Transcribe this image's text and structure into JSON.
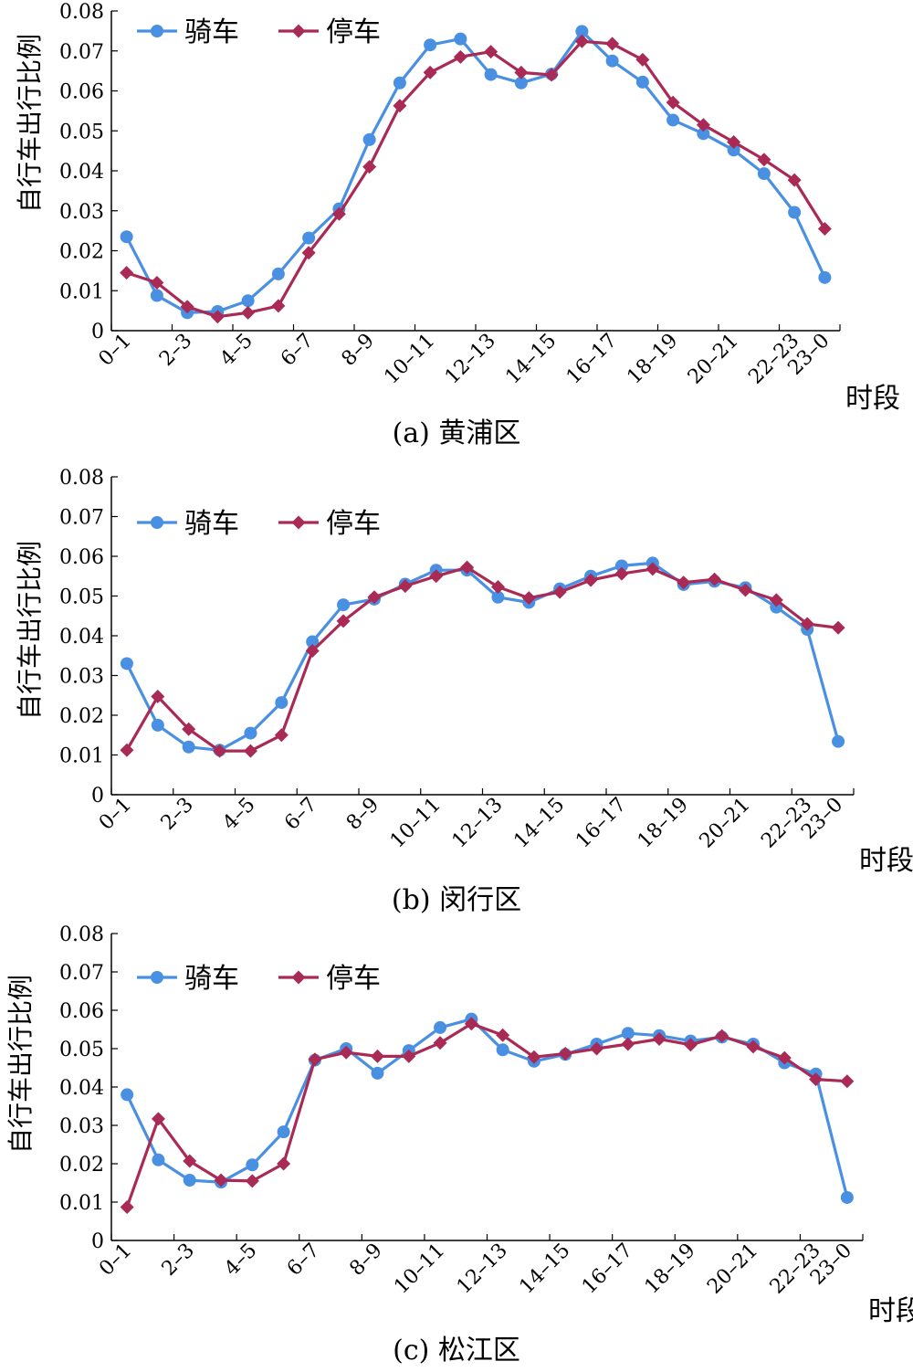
{
  "colors": {
    "riding": "#4a90e2",
    "parking": "#a82a55",
    "axis": "#000000"
  },
  "chart_data": [
    {
      "type": "line",
      "caption": "(a) 黄浦区",
      "ylabel": "自行车出行比例",
      "xlabel": "时段",
      "ylim": [
        0,
        0.08
      ],
      "yticks": [
        "0",
        "0.01",
        "0.02",
        "0.03",
        "0.04",
        "0.05",
        "0.06",
        "0.07",
        "0.08"
      ],
      "x_categories": [
        "0–1",
        "1–2",
        "2–3",
        "3–4",
        "4–5",
        "5–6",
        "6–7",
        "7–8",
        "8–9",
        "9–10",
        "10–11",
        "11–12",
        "12–13",
        "13–14",
        "14–15",
        "15–16",
        "16–17",
        "17–18",
        "18–19",
        "19–20",
        "20–21",
        "21–22",
        "22–23",
        "23–0"
      ],
      "x_tick_labels": [
        "0–1",
        "2–3",
        "4–5",
        "6–7",
        "8–9",
        "10–11",
        "12–13",
        "14–15",
        "16–17",
        "18–19",
        "20–21",
        "22–23",
        "23–0"
      ],
      "legend_position": "top-left",
      "series": [
        {
          "name": "骑车",
          "marker": "circle",
          "values": [
            0.0235,
            0.0088,
            0.0045,
            0.0048,
            0.0075,
            0.0142,
            0.0232,
            0.0305,
            0.0478,
            0.062,
            0.0715,
            0.073,
            0.0641,
            0.062,
            0.0642,
            0.0749,
            0.0675,
            0.0622,
            0.0527,
            0.0493,
            0.0452,
            0.0393,
            0.0296,
            0.0133
          ]
        },
        {
          "name": "停车",
          "marker": "diamond",
          "values": [
            0.0145,
            0.012,
            0.006,
            0.0035,
            0.0045,
            0.0062,
            0.0195,
            0.0292,
            0.041,
            0.0563,
            0.0646,
            0.0685,
            0.0698,
            0.0646,
            0.064,
            0.0724,
            0.0718,
            0.0678,
            0.0571,
            0.0515,
            0.0472,
            0.0428,
            0.0377,
            0.0255
          ]
        }
      ]
    },
    {
      "type": "line",
      "caption": "(b) 闵行区",
      "ylabel": "自行车出行比例",
      "xlabel": "时段",
      "ylim": [
        0,
        0.08
      ],
      "yticks": [
        "0",
        "0.01",
        "0.02",
        "0.03",
        "0.04",
        "0.05",
        "0.06",
        "0.07",
        "0.08"
      ],
      "x_categories": [
        "0–1",
        "1–2",
        "2–3",
        "3–4",
        "4–5",
        "5–6",
        "6–7",
        "7–8",
        "8–9",
        "9–10",
        "10–11",
        "11–12",
        "12–13",
        "13–14",
        "14–15",
        "15–16",
        "16–17",
        "17–18",
        "18–19",
        "19–20",
        "20–21",
        "21–22",
        "22–23",
        "23–0"
      ],
      "x_tick_labels": [
        "0–1",
        "2–3",
        "4–5",
        "6–7",
        "8–9",
        "10–11",
        "12–13",
        "14–15",
        "16–17",
        "18–19",
        "20–21",
        "22–23",
        "23–0"
      ],
      "legend_position": "top-left",
      "series": [
        {
          "name": "骑车",
          "marker": "circle",
          "values": [
            0.033,
            0.0175,
            0.012,
            0.0112,
            0.0155,
            0.0232,
            0.0385,
            0.0478,
            0.0492,
            0.053,
            0.0565,
            0.0565,
            0.0497,
            0.0484,
            0.0518,
            0.055,
            0.0576,
            0.0583,
            0.0529,
            0.0537,
            0.0521,
            0.0472,
            0.0416,
            0.0134
          ]
        },
        {
          "name": "停车",
          "marker": "diamond",
          "values": [
            0.0112,
            0.0247,
            0.0165,
            0.011,
            0.011,
            0.015,
            0.0362,
            0.0437,
            0.0497,
            0.0525,
            0.055,
            0.0572,
            0.0523,
            0.0495,
            0.051,
            0.054,
            0.0556,
            0.0568,
            0.0534,
            0.0542,
            0.0515,
            0.049,
            0.043,
            0.042
          ]
        }
      ]
    },
    {
      "type": "line",
      "caption": "(c) 松江区",
      "ylabel": "自行车出行比例",
      "xlabel": "时段",
      "ylim": [
        0,
        0.08
      ],
      "yticks": [
        "0",
        "0.01",
        "0.02",
        "0.03",
        "0.04",
        "0.05",
        "0.06",
        "0.07",
        "0.08"
      ],
      "x_categories": [
        "0–1",
        "1–2",
        "2–3",
        "3–4",
        "4–5",
        "5–6",
        "6–7",
        "7–8",
        "8–9",
        "9–10",
        "10–11",
        "11–12",
        "12–13",
        "13–14",
        "14–15",
        "15–16",
        "16–17",
        "17–18",
        "18–19",
        "19–20",
        "20–21",
        "21–22",
        "22–23",
        "23–0"
      ],
      "x_tick_labels": [
        "0–1",
        "2–3",
        "4–5",
        "6–7",
        "8–9",
        "10–11",
        "12–13",
        "14–15",
        "16–17",
        "18–19",
        "20–21",
        "22–23",
        "23–0"
      ],
      "legend_position": "top-left",
      "series": [
        {
          "name": "骑车",
          "marker": "circle",
          "values": [
            0.038,
            0.021,
            0.0157,
            0.0152,
            0.0197,
            0.0283,
            0.047,
            0.05,
            0.0436,
            0.0495,
            0.0555,
            0.0577,
            0.0497,
            0.0467,
            0.0485,
            0.0512,
            0.054,
            0.0534,
            0.052,
            0.053,
            0.0512,
            0.0463,
            0.0434,
            0.0112
          ]
        },
        {
          "name": "停车",
          "marker": "diamond",
          "values": [
            0.0087,
            0.0317,
            0.0207,
            0.0157,
            0.0155,
            0.02,
            0.0472,
            0.049,
            0.048,
            0.048,
            0.0515,
            0.0565,
            0.0535,
            0.0478,
            0.0487,
            0.05,
            0.0512,
            0.0525,
            0.051,
            0.0533,
            0.0505,
            0.0476,
            0.042,
            0.0415
          ]
        }
      ]
    }
  ]
}
